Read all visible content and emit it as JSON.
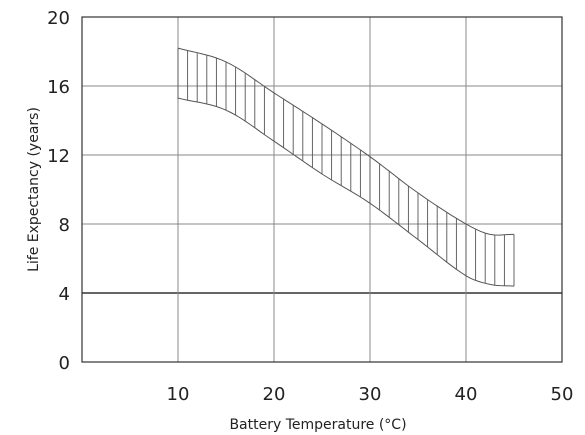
{
  "chart_data": {
    "type": "area",
    "title": "",
    "xlabel": "Battery Temperature (°C)",
    "ylabel": "Life Expectancy (years)",
    "xlim": [
      0,
      50
    ],
    "ylim": [
      0,
      20
    ],
    "x_ticks": [
      "10",
      "20",
      "30",
      "40",
      "50"
    ],
    "y_ticks": [
      "0",
      "4",
      "8",
      "12",
      "16",
      "20"
    ],
    "grid": true,
    "legend": "none",
    "hatch": "vertical",
    "series": [
      {
        "x": [
          10,
          15,
          20,
          25,
          30,
          35,
          40,
          42.5,
          45
        ],
        "upper": [
          18.2,
          17.4,
          15.6,
          13.8,
          11.9,
          9.8,
          8.0,
          7.4,
          7.4
        ],
        "lower": [
          15.3,
          14.6,
          12.8,
          10.9,
          9.2,
          7.1,
          5.0,
          4.5,
          4.4
        ]
      }
    ],
    "colors": {
      "line": "#555555",
      "grid": "#888888",
      "axis": "#333333"
    }
  }
}
